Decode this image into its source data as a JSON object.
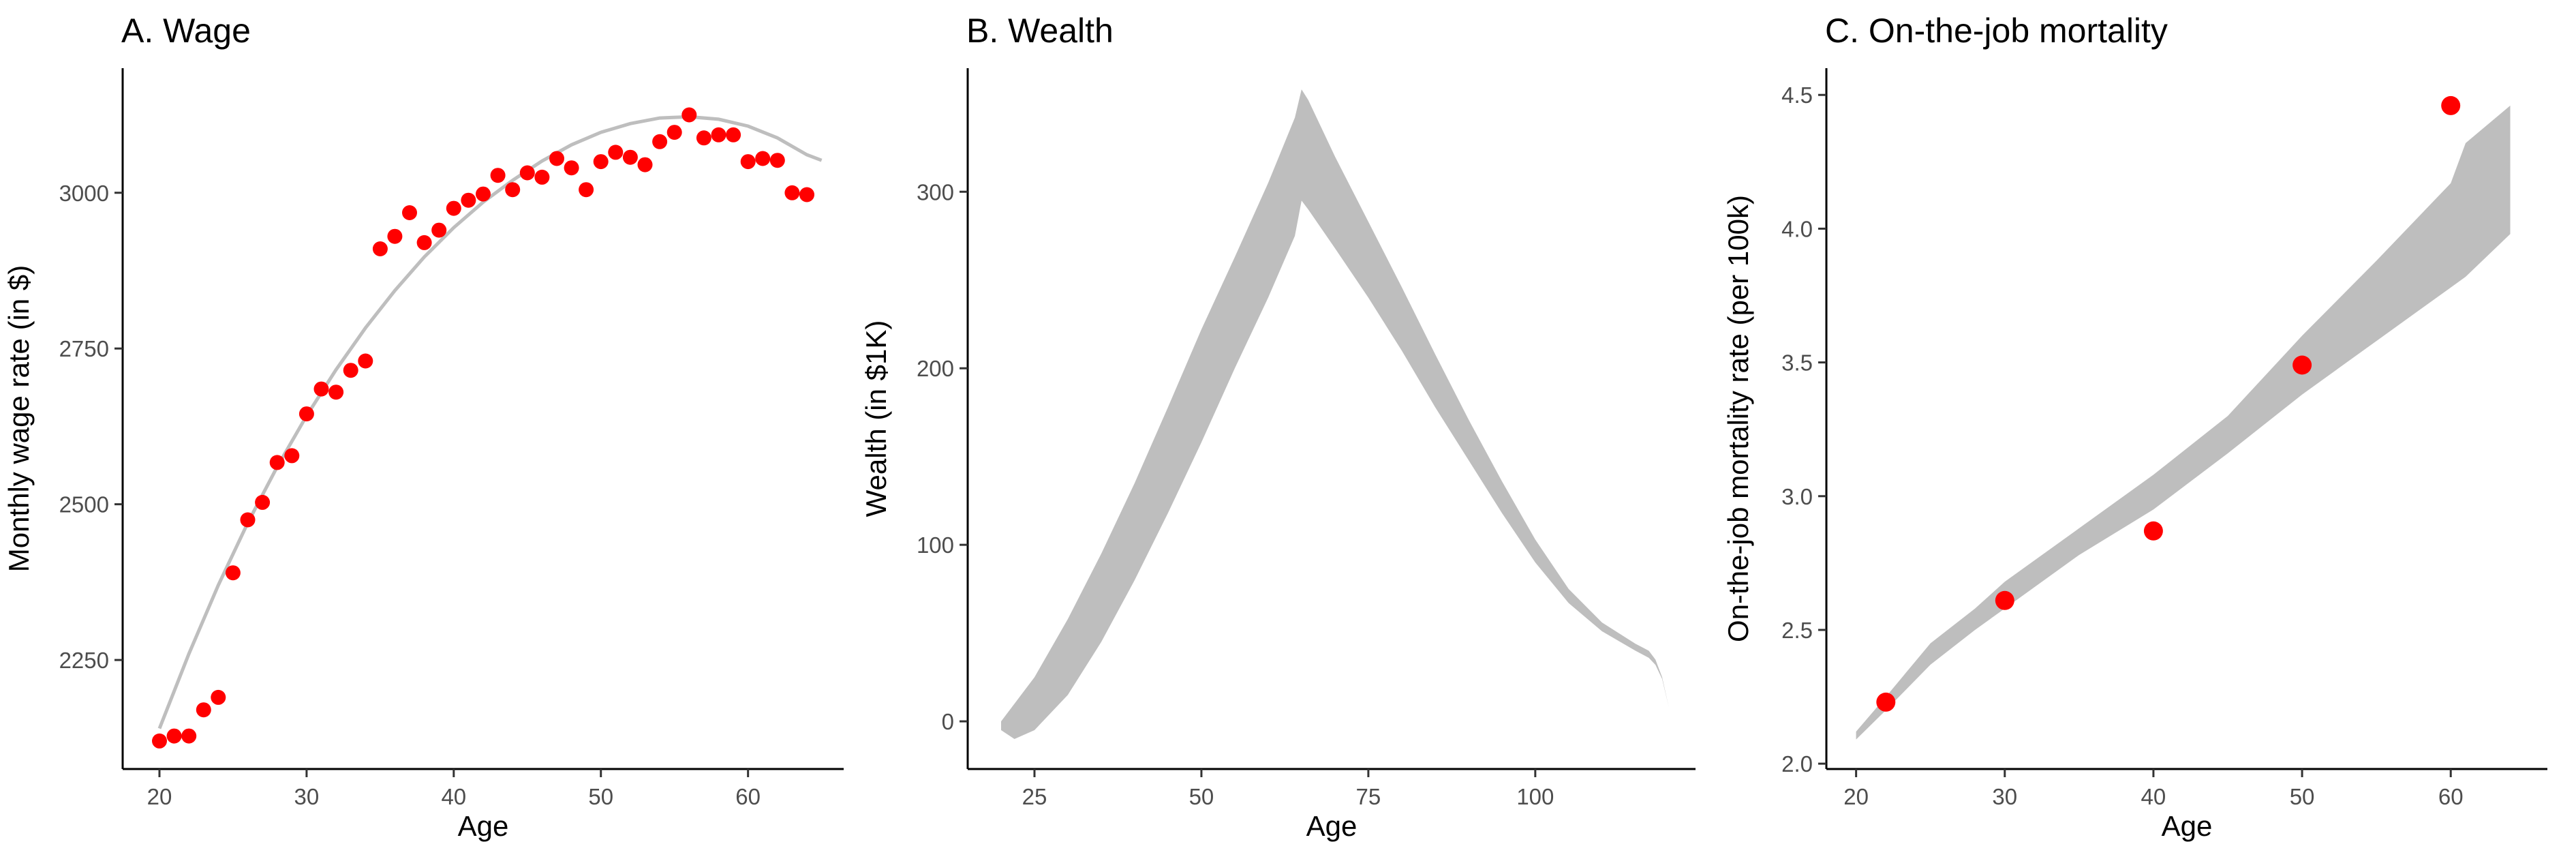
{
  "chart_data": [
    {
      "type": "scatter",
      "title": "A. Wage",
      "xlabel": "Age",
      "ylabel": "Monthly wage rate (in $)",
      "xlim": [
        17.5,
        66.5
      ],
      "ylim": [
        2075,
        3200
      ],
      "xticks": [
        20,
        30,
        40,
        50,
        60
      ],
      "yticks": [
        2250,
        2500,
        2750,
        3000
      ],
      "grid": false,
      "colors": {
        "points": "#ff0000",
        "fit": "#bebebe"
      },
      "series": [
        {
          "kind": "points",
          "x": [
            20,
            21,
            22,
            23,
            24,
            25,
            26,
            27,
            28,
            29,
            30,
            31,
            32,
            33,
            34,
            35,
            36,
            37,
            38,
            39,
            40,
            41,
            42,
            43,
            44,
            45,
            46,
            47,
            48,
            49,
            50,
            51,
            52,
            53,
            54,
            55,
            56,
            57,
            58,
            59,
            60,
            61,
            62,
            63,
            64
          ],
          "y": [
            2120,
            2128,
            2128,
            2170,
            2190,
            2390,
            2475,
            2503,
            2567,
            2578,
            2645,
            2685,
            2680,
            2715,
            2730,
            2910,
            2930,
            2968,
            2920,
            2940,
            2975,
            2988,
            2998,
            3028,
            3005,
            3032,
            3025,
            3055,
            3040,
            3005,
            3050,
            3065,
            3057,
            3045,
            3082,
            3097,
            3125,
            3088,
            3093,
            3093,
            3050,
            3055,
            3052,
            3000,
            2997
          ]
        },
        {
          "kind": "fit-line",
          "x": [
            20,
            22,
            24,
            26,
            28,
            30,
            32,
            34,
            36,
            38,
            40,
            42,
            44,
            46,
            48,
            50,
            52,
            54,
            56,
            58,
            60,
            62,
            64,
            65
          ],
          "y": [
            2140,
            2260,
            2370,
            2470,
            2560,
            2642,
            2716,
            2783,
            2843,
            2897,
            2944,
            2985,
            3020,
            3051,
            3077,
            3097,
            3111,
            3120,
            3122,
            3118,
            3107,
            3088,
            3061,
            3052
          ]
        }
      ]
    },
    {
      "type": "area",
      "title": "B. Wealth",
      "xlabel": "Age",
      "ylabel": "Wealth (in $1K)",
      "xlim": [
        15,
        124
      ],
      "ylim": [
        -27,
        370
      ],
      "xticks": [
        25,
        50,
        75,
        100
      ],
      "yticks": [
        0,
        100,
        200,
        300
      ],
      "grid": false,
      "colors": {
        "band": "#bebebe"
      },
      "series": [
        {
          "kind": "band",
          "x": [
            20,
            22,
            25,
            30,
            35,
            40,
            45,
            50,
            55,
            60,
            64,
            65,
            66,
            70,
            75,
            80,
            85,
            90,
            95,
            100,
            105,
            110,
            115,
            117,
            118,
            119,
            120
          ],
          "upper": [
            0,
            10,
            25,
            58,
            95,
            135,
            178,
            222,
            263,
            305,
            342,
            358,
            352,
            320,
            283,
            246,
            208,
            171,
            136,
            103,
            75,
            56,
            44,
            40,
            35,
            25,
            8
          ],
          "lower": [
            -5,
            -10,
            -5,
            15,
            45,
            80,
            118,
            158,
            200,
            240,
            275,
            295,
            290,
            268,
            240,
            210,
            178,
            148,
            118,
            90,
            67,
            51,
            40,
            36,
            32,
            24,
            8
          ]
        }
      ]
    },
    {
      "type": "scatter",
      "title": "C. On-the-job mortality",
      "xlabel": "Age",
      "ylabel": "On-the-job mortality rate (per 100k)",
      "xlim": [
        18,
        66.5
      ],
      "ylim": [
        1.98,
        4.6
      ],
      "xticks": [
        20,
        30,
        40,
        50,
        60
      ],
      "yticks": [
        2.0,
        2.5,
        3.0,
        3.5,
        4.0,
        4.5
      ],
      "grid": false,
      "colors": {
        "points": "#ff0000",
        "band": "#bebebe"
      },
      "series": [
        {
          "kind": "band",
          "x": [
            20,
            22,
            25,
            28,
            30,
            35,
            40,
            45,
            50,
            55,
            60,
            61,
            64
          ],
          "upper": [
            2.12,
            2.25,
            2.45,
            2.58,
            2.68,
            2.88,
            3.08,
            3.3,
            3.6,
            3.88,
            4.17,
            4.32,
            4.46
          ],
          "lower": [
            2.09,
            2.2,
            2.37,
            2.5,
            2.58,
            2.78,
            2.95,
            3.16,
            3.38,
            3.58,
            3.78,
            3.82,
            3.98
          ]
        },
        {
          "kind": "points",
          "x": [
            22,
            30,
            40,
            50,
            60
          ],
          "y": [
            2.23,
            2.61,
            2.87,
            3.49,
            4.46
          ]
        }
      ]
    }
  ]
}
